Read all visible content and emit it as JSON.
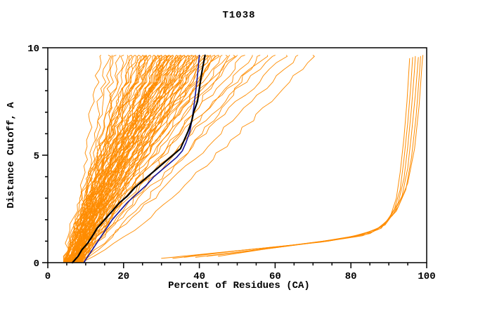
{
  "chart_data": {
    "type": "line",
    "title": "T1038",
    "xlabel": "Percent of Residues (CA)",
    "ylabel": "Distance Cutoff, A",
    "xlim": [
      0,
      100
    ],
    "ylim": [
      0,
      10
    ],
    "x_axis": {
      "major_ticks": [
        0,
        20,
        40,
        60,
        80,
        100
      ],
      "minor_step": 5
    },
    "y_axis": {
      "major_ticks": [
        0,
        5,
        10
      ],
      "minor_step": 1
    },
    "grid": false,
    "legend": "none",
    "colors": {
      "models": "#ff8c00",
      "highlight_black": "#000000",
      "highlight_blue": "#14149b",
      "frame": "#000000",
      "background": "#ffffff"
    },
    "series": {
      "orange_bundle": {
        "name": "model curves (orange)",
        "start_x_range": [
          4,
          9
        ],
        "top_y": 9.65,
        "jitter": 1.6,
        "top_x": [
          14,
          16,
          17,
          18,
          19,
          20,
          21,
          22,
          22,
          23,
          23,
          24,
          24,
          25,
          25,
          26,
          26,
          26,
          27,
          27,
          27,
          28,
          28,
          28,
          29,
          29,
          29,
          30,
          30,
          30,
          30,
          31,
          31,
          31,
          31,
          32,
          32,
          32,
          32,
          33,
          33,
          33,
          33,
          34,
          34,
          34,
          34,
          35,
          35,
          35,
          35,
          36,
          36,
          36,
          36,
          37,
          37,
          37,
          38,
          38,
          38,
          39,
          39,
          39,
          40,
          40,
          40,
          41,
          41,
          42,
          42,
          43,
          43,
          44,
          44,
          45,
          45,
          46,
          47,
          48,
          49,
          50,
          52,
          54,
          56,
          58,
          60,
          63,
          66,
          70
        ]
      },
      "right_cluster": {
        "name": "outlier model curves (orange, right)",
        "lines": [
          [
            [
              30,
              0.2
            ],
            [
              44,
              0.45
            ],
            [
              58,
              0.7
            ],
            [
              72,
              0.95
            ],
            [
              83,
              1.25
            ],
            [
              88,
              1.6
            ],
            [
              90.5,
              2.2
            ],
            [
              92,
              3.0
            ],
            [
              93,
              4.2
            ],
            [
              94,
              5.8
            ],
            [
              94.8,
              7.5
            ],
            [
              95.5,
              9.5
            ]
          ],
          [
            [
              33,
              0.2
            ],
            [
              47,
              0.5
            ],
            [
              61,
              0.75
            ],
            [
              74,
              1.0
            ],
            [
              85,
              1.35
            ],
            [
              89,
              1.8
            ],
            [
              91.5,
              2.5
            ],
            [
              93,
              3.4
            ],
            [
              94,
              4.8
            ],
            [
              95,
              6.5
            ],
            [
              95.8,
              8.2
            ],
            [
              96.3,
              9.55
            ]
          ],
          [
            [
              36,
              0.25
            ],
            [
              50,
              0.55
            ],
            [
              64,
              0.8
            ],
            [
              77,
              1.1
            ],
            [
              86,
              1.45
            ],
            [
              90,
              2.0
            ],
            [
              92.5,
              2.8
            ],
            [
              94,
              3.9
            ],
            [
              95,
              5.4
            ],
            [
              96,
              7.2
            ],
            [
              96.8,
              9.0
            ],
            [
              97,
              9.6
            ]
          ],
          [
            [
              39,
              0.25
            ],
            [
              53,
              0.55
            ],
            [
              66,
              0.85
            ],
            [
              79,
              1.15
            ],
            [
              87,
              1.55
            ],
            [
              91,
              2.2
            ],
            [
              93.5,
              3.1
            ],
            [
              95,
              4.4
            ],
            [
              96,
              6.0
            ],
            [
              97,
              7.8
            ],
            [
              97.8,
              9.55
            ]
          ],
          [
            [
              42,
              0.3
            ],
            [
              56,
              0.6
            ],
            [
              69,
              0.9
            ],
            [
              81,
              1.2
            ],
            [
              88,
              1.65
            ],
            [
              92,
              2.4
            ],
            [
              94.5,
              3.4
            ],
            [
              96,
              4.9
            ],
            [
              97.2,
              6.8
            ],
            [
              98,
              8.6
            ],
            [
              98.4,
              9.6
            ]
          ],
          [
            [
              45,
              0.3
            ],
            [
              58,
              0.65
            ],
            [
              71,
              0.95
            ],
            [
              83,
              1.3
            ],
            [
              89,
              1.75
            ],
            [
              92.5,
              2.6
            ],
            [
              95,
              3.7
            ],
            [
              96.8,
              5.3
            ],
            [
              98,
              7.3
            ],
            [
              98.8,
              9.3
            ],
            [
              99,
              9.65
            ]
          ]
        ]
      },
      "black_model": {
        "name": "highlighted model (black)",
        "points": [
          [
            6.5,
            0
          ],
          [
            8,
            0.3
          ],
          [
            9,
            0.6
          ],
          [
            10.5,
            0.9
          ],
          [
            12,
            1.3
          ],
          [
            13,
            1.6
          ],
          [
            14.5,
            1.9
          ],
          [
            16,
            2.2
          ],
          [
            17.5,
            2.5
          ],
          [
            19,
            2.8
          ],
          [
            21,
            3.1
          ],
          [
            23,
            3.5
          ],
          [
            25,
            3.8
          ],
          [
            27,
            4.1
          ],
          [
            29,
            4.4
          ],
          [
            31,
            4.7
          ],
          [
            33,
            5.0
          ],
          [
            35,
            5.3
          ],
          [
            36,
            5.7
          ],
          [
            37,
            6.1
          ],
          [
            38,
            6.6
          ],
          [
            38.5,
            7.0
          ],
          [
            39.5,
            7.5
          ],
          [
            40,
            8.1
          ],
          [
            40.5,
            8.7
          ],
          [
            41,
            9.2
          ],
          [
            41.5,
            9.65
          ]
        ]
      },
      "blue_model": {
        "name": "highlighted model (blue)",
        "points": [
          [
            9.5,
            0
          ],
          [
            11,
            0.4
          ],
          [
            12.5,
            0.8
          ],
          [
            14,
            1.2
          ],
          [
            15.5,
            1.6
          ],
          [
            17,
            2.0
          ],
          [
            19,
            2.4
          ],
          [
            21,
            2.8
          ],
          [
            23.5,
            3.2
          ],
          [
            26,
            3.6
          ],
          [
            28,
            4.0
          ],
          [
            30,
            4.3
          ],
          [
            32,
            4.6
          ],
          [
            34,
            4.9
          ],
          [
            35.5,
            5.2
          ],
          [
            36.5,
            5.6
          ],
          [
            37.5,
            6.1
          ],
          [
            38,
            6.6
          ],
          [
            38.5,
            7.2
          ],
          [
            39,
            7.9
          ],
          [
            39.5,
            8.7
          ],
          [
            40,
            9.65
          ]
        ]
      }
    }
  }
}
